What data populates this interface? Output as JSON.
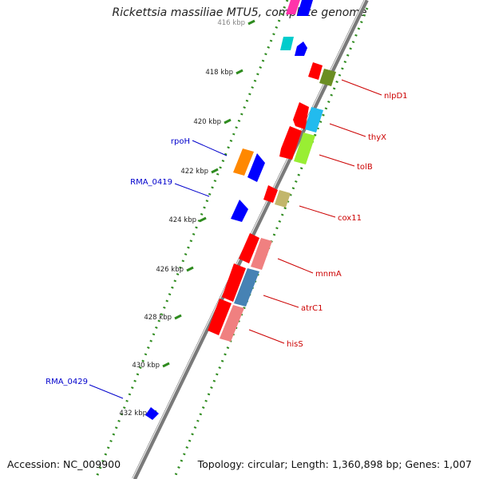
{
  "title": "Rickettsia massiliae MTU5, complete genome",
  "footer": {
    "accession": "Accession: NC_009900",
    "summary": "Topology: circular; Length: 1,360,898 bp; Genes: 1,007"
  },
  "ticks": [
    {
      "label": "416 kbp"
    },
    {
      "label": "418 kbp"
    },
    {
      "label": "420 kbp"
    },
    {
      "label": "422 kbp"
    },
    {
      "label": "424 kbp"
    },
    {
      "label": "426 kbp"
    },
    {
      "label": "428 kbp"
    },
    {
      "label": "430 kbp"
    },
    {
      "label": "432 kbp"
    }
  ],
  "gene_labels": [
    {
      "name": "nlpD1",
      "color": "#cc0000",
      "strand": "plus"
    },
    {
      "name": "thyX",
      "color": "#cc0000",
      "strand": "plus"
    },
    {
      "name": "tolB",
      "color": "#cc0000",
      "strand": "plus"
    },
    {
      "name": "cox11",
      "color": "#cc0000",
      "strand": "plus"
    },
    {
      "name": "mnmA",
      "color": "#cc0000",
      "strand": "plus"
    },
    {
      "name": "atrC1",
      "color": "#cc0000",
      "strand": "plus"
    },
    {
      "name": "hisS",
      "color": "#cc0000",
      "strand": "plus"
    },
    {
      "name": "rpoH",
      "color": "#0000cc",
      "strand": "minus"
    },
    {
      "name": "RMA_0419",
      "color": "#0000cc",
      "strand": "minus"
    },
    {
      "name": "RMA_0429",
      "color": "#0000cc",
      "strand": "minus"
    }
  ],
  "colors": {
    "backbone": "#777777",
    "backbone_highlight": "#eeeeee",
    "tick_dots": "#2e8b1e",
    "forward_gene": "#ff0000",
    "reverse_gene": "#0000ff"
  }
}
